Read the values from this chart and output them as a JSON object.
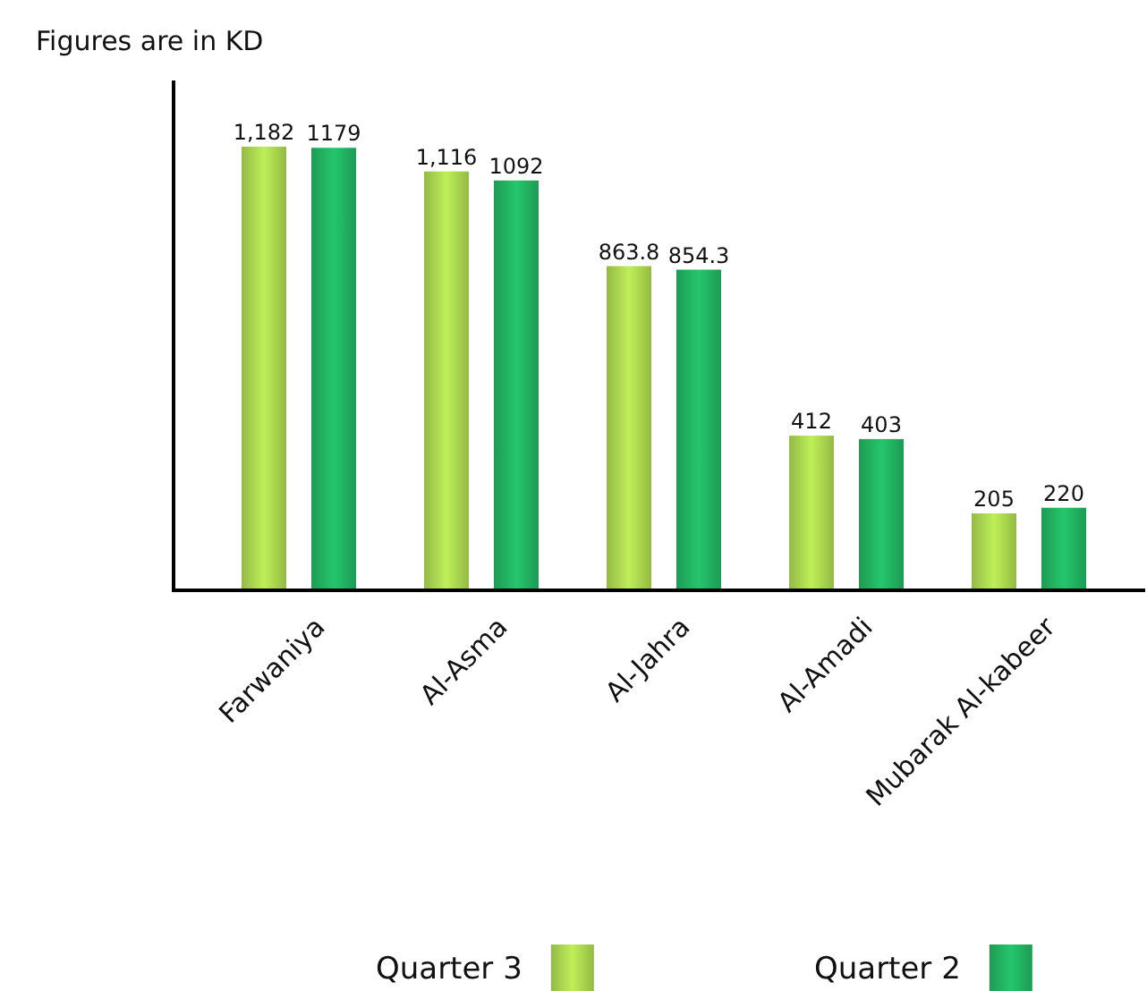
{
  "chart_data": {
    "type": "bar",
    "ylabel": "Figures are in KD",
    "categories": [
      "Farwaniya",
      "Al-Asma",
      "Al-Jahra",
      "Al-Amadi",
      "Mubarak Al-kabeer"
    ],
    "series": [
      {
        "name": "Quarter 3",
        "color": "#9fc84a",
        "values": [
          1182,
          1116,
          863.8,
          412,
          205
        ],
        "value_labels": [
          "1,182",
          "1,116",
          "863.8",
          "412",
          "205"
        ]
      },
      {
        "name": "Quarter 2",
        "color": "#1fa65a",
        "values": [
          1179,
          1092,
          854.3,
          403,
          220
        ],
        "value_labels": [
          "1179",
          "1092",
          "854.3",
          "403",
          "220"
        ]
      }
    ],
    "legend": "bottom"
  }
}
